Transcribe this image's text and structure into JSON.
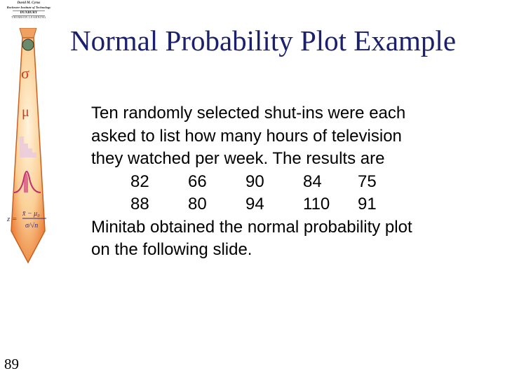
{
  "sidebar": {
    "author": "David M. Cyrus",
    "institution": "Rochester Institute of Technology",
    "publisher": "DUXBURY",
    "publisher_sub": "THOMSON LEARNING",
    "symbols": {
      "sigma": "σ",
      "mu": "μ"
    }
  },
  "slide": {
    "title": "Normal Probability Plot Example",
    "lines": [
      "Ten randomly selected shut-ins were each",
      "asked to list how many hours of television",
      "they watched per week.  The results are"
    ],
    "data_rows": [
      [
        "82",
        "66",
        "90",
        "84",
        "75"
      ],
      [
        "88",
        "80",
        "94",
        "110",
        "91"
      ]
    ],
    "closing_lines": [
      "Minitab obtained the normal probability plot",
      "on the following slide."
    ],
    "page_number": "89"
  },
  "colors": {
    "title": "#1a1f6e",
    "tie_light": "#fde9c8",
    "tie_dark": "#e8722a",
    "accent": "#cc3b1a"
  },
  "icons": [
    "tie-graphic",
    "globe-icon"
  ]
}
